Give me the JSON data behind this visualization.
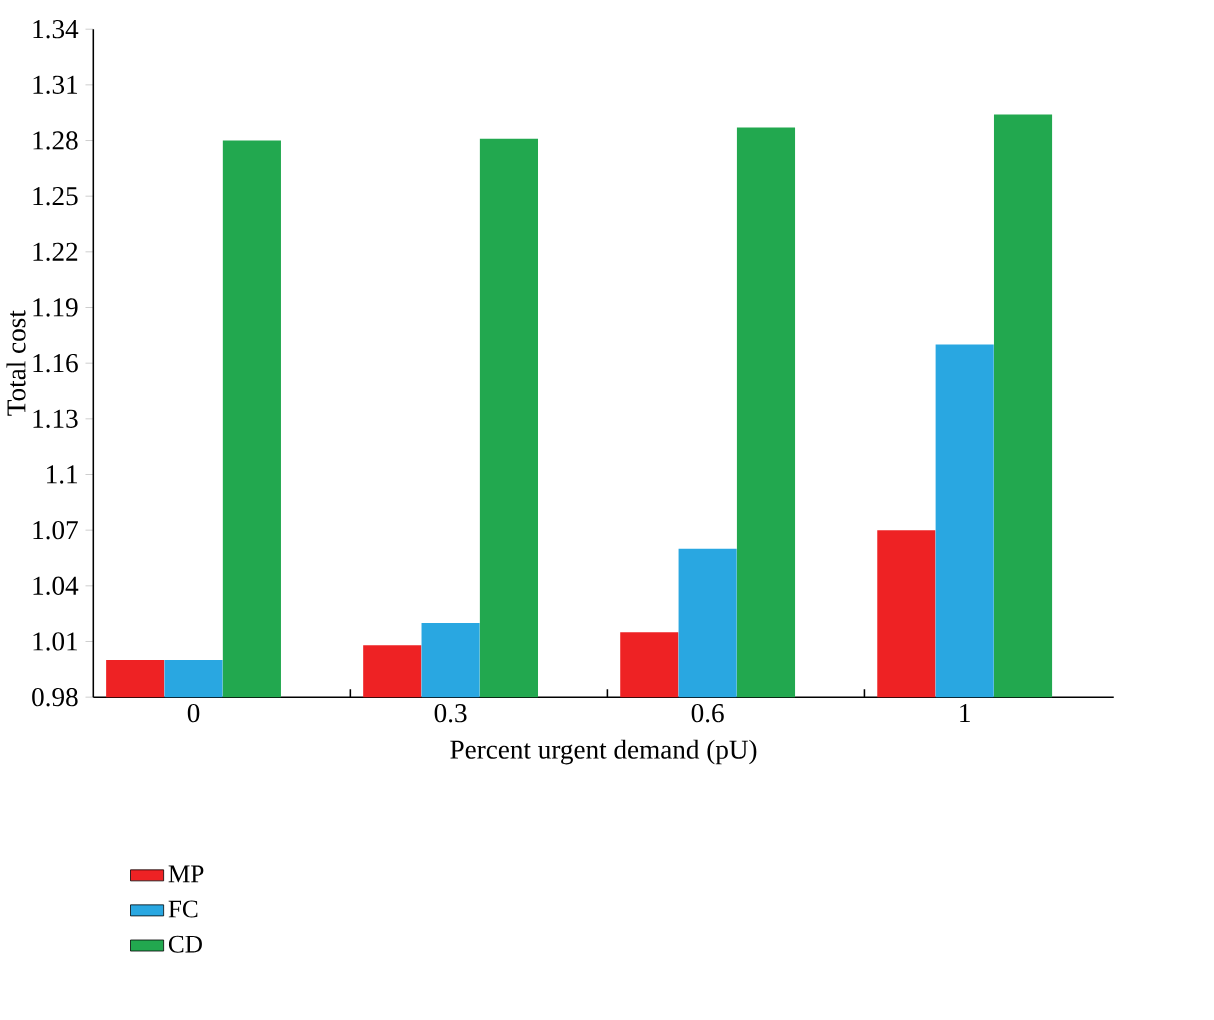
{
  "chart_data": {
    "type": "bar",
    "xlabel": "Percent urgent demand (pU)",
    "ylabel": "Total cost",
    "categories": [
      "0",
      "0.3",
      "0.6",
      "1"
    ],
    "series": [
      {
        "name": "MP",
        "color": "#ee2224",
        "values": [
          1.0,
          1.008,
          1.015,
          1.07
        ]
      },
      {
        "name": "FC",
        "color": "#29a7e1",
        "values": [
          1.0,
          1.02,
          1.06,
          1.17
        ]
      },
      {
        "name": "CD",
        "color": "#22a84f",
        "values": [
          1.28,
          1.281,
          1.287,
          1.294
        ]
      }
    ],
    "ylim": [
      0.98,
      1.34
    ],
    "yticks": [
      0.98,
      1.01,
      1.04,
      1.07,
      1.1,
      1.13,
      1.16,
      1.19,
      1.22,
      1.25,
      1.28,
      1.31,
      1.34
    ],
    "grid": false,
    "legend": "bottom left"
  }
}
